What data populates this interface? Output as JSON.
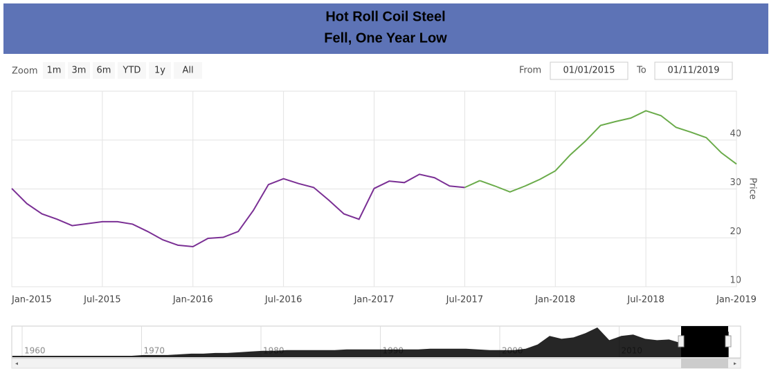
{
  "header": {
    "title_line1": "Hot Roll Coil Steel",
    "title_line2": "Fell, One Year Low"
  },
  "controls": {
    "zoom_label": "Zoom",
    "buttons": [
      "1m",
      "3m",
      "6m",
      "YTD",
      "1y",
      "All"
    ],
    "from_label": "From",
    "from_value": "01/01/2015",
    "to_label": "To",
    "to_value": "01/11/2019"
  },
  "chart_data": [
    {
      "type": "line",
      "y_label": "Price",
      "x": [
        "2015-01",
        "2015-02",
        "2015-03",
        "2015-04",
        "2015-05",
        "2015-06",
        "2015-07",
        "2015-08",
        "2015-09",
        "2015-10",
        "2015-11",
        "2015-12",
        "2016-01",
        "2016-02",
        "2016-03",
        "2016-04",
        "2016-05",
        "2016-06",
        "2016-07",
        "2016-08",
        "2016-09",
        "2016-10",
        "2016-11",
        "2016-12",
        "2017-01",
        "2017-02",
        "2017-03",
        "2017-04",
        "2017-05",
        "2017-06",
        "2017-07",
        "2017-08",
        "2017-09",
        "2017-10",
        "2017-11",
        "2017-12",
        "2018-01",
        "2018-02",
        "2018-03",
        "2018-04",
        "2018-05",
        "2018-06",
        "2018-07",
        "2018-08",
        "2018-09",
        "2018-10",
        "2018-11",
        "2018-12",
        "2019-01"
      ],
      "series": [
        {
          "color": "#7a2f94",
          "values": [
            30.1,
            27,
            24.9,
            23.8,
            22.5,
            22.9,
            23.3,
            23.3,
            22.8,
            21.3,
            19.6,
            18.5,
            18.2,
            19.9,
            20.1,
            21.3,
            25.6,
            30.9,
            32.1,
            31.1,
            30.3,
            27.7,
            24.9,
            23.8,
            30.1,
            31.6,
            31.3,
            33,
            32.3,
            30.6,
            30.3,
            null,
            null,
            null,
            null,
            null,
            null,
            null,
            null,
            null,
            null,
            null,
            null,
            null,
            null,
            null,
            null,
            null,
            null
          ]
        },
        {
          "color": "#6aab4a",
          "values": [
            null,
            null,
            null,
            null,
            null,
            null,
            null,
            null,
            null,
            null,
            null,
            null,
            null,
            null,
            null,
            null,
            null,
            null,
            null,
            null,
            null,
            null,
            null,
            null,
            null,
            null,
            null,
            null,
            null,
            null,
            null,
            31.7,
            30.6,
            29.4,
            30.6,
            32,
            33.7,
            37,
            39.8,
            43,
            43.8,
            44.5,
            46,
            45,
            42.6,
            41.6,
            40.5,
            37.4,
            35.1
          ]
        }
      ],
      "ylim": [
        10,
        50
      ],
      "yticks": [
        10,
        20,
        30,
        40
      ],
      "xticks": [
        {
          "value": "2015-01",
          "label": "Jan-2015"
        },
        {
          "value": "2015-07",
          "label": "Jul-2015"
        },
        {
          "value": "2016-01",
          "label": "Jan-2016"
        },
        {
          "value": "2016-07",
          "label": "Jul-2016"
        },
        {
          "value": "2017-01",
          "label": "Jan-2017"
        },
        {
          "value": "2017-07",
          "label": "Jul-2017"
        },
        {
          "value": "2018-01",
          "label": "Jan-2018"
        },
        {
          "value": "2018-07",
          "label": "Jul-2018"
        },
        {
          "value": "2019-01",
          "label": "Jan-2019"
        }
      ],
      "grid": true
    },
    {
      "type": "area",
      "color": "#000000",
      "x": [
        1959,
        1960,
        1961,
        1962,
        1963,
        1964,
        1965,
        1966,
        1967,
        1968,
        1969,
        1970,
        1971,
        1972,
        1973,
        1974,
        1975,
        1976,
        1977,
        1978,
        1979,
        1980,
        1981,
        1982,
        1983,
        1984,
        1985,
        1986,
        1987,
        1988,
        1989,
        1990,
        1991,
        1992,
        1993,
        1994,
        1995,
        1996,
        1997,
        1998,
        1999,
        2000,
        2001,
        2002,
        2003,
        2004,
        2005,
        2006,
        2007,
        2008,
        2009,
        2010,
        2011,
        2012,
        2013,
        2014,
        2015,
        2016,
        2017,
        2018,
        2019
      ],
      "values": [
        2,
        2,
        2,
        2,
        2,
        2,
        2,
        2,
        2,
        2,
        2,
        3,
        3,
        3,
        4,
        5,
        5,
        6,
        6,
        7,
        8,
        9,
        9,
        10,
        10,
        10,
        10,
        10,
        11,
        11,
        11,
        11,
        11,
        11,
        11,
        12,
        12,
        12,
        12,
        11,
        10,
        10,
        10,
        12,
        18,
        30,
        26,
        28,
        34,
        42,
        24,
        30,
        32,
        26,
        24,
        25,
        20,
        18,
        28,
        40,
        36
      ],
      "xticks": [
        1960,
        1970,
        1980,
        1990,
        2000,
        2010
      ]
    }
  ]
}
